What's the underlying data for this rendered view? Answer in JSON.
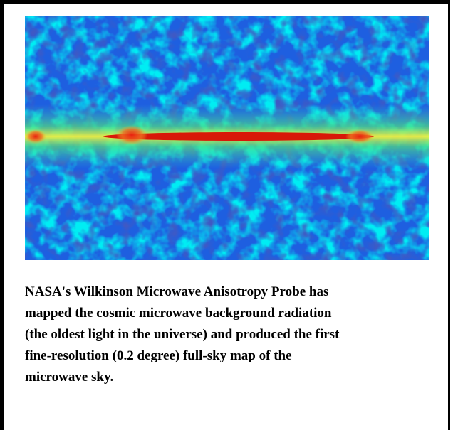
{
  "caption": {
    "lines": [
      "NASA's Wilkinson Microwave Anisotropy Probe has",
      "mapped the cosmic microwave background radiation",
      "(the oldest light in the universe) and produced the first",
      "fine-resolution (0.2 degree) full-sky map of the",
      "microwave sky."
    ]
  }
}
